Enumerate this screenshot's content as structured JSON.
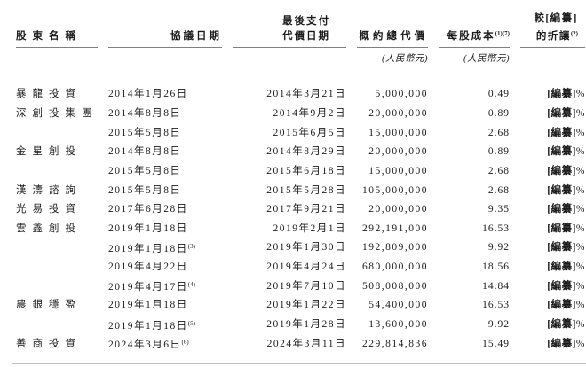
{
  "page": {
    "background": "#ffffff",
    "text_color": "#1b1b1b",
    "header_rule_color": "#808080",
    "bottom_rule_color": "#bfbfbf"
  },
  "table": {
    "columns": {
      "shareholder": {
        "label": "股東名稱"
      },
      "agreement_date": {
        "label": "協議日期"
      },
      "last_payment_date": {
        "label_line1": "最後支付",
        "label_line2": "代價日期"
      },
      "total_consideration": {
        "label": "概約總代價",
        "sublabel": "(人民幣元)"
      },
      "cost_per_share": {
        "label": "每股成本",
        "superscript": "(1)(7)",
        "sublabel": "(人民幣元)"
      },
      "discount": {
        "label_line1": "較[編纂]",
        "label_line2": "的折讓",
        "superscript": "(2)"
      }
    },
    "rows": [
      {
        "shareholder": "暴龍投資",
        "agreement_date": "2014年1月26日",
        "agreement_date_sup": "",
        "last_payment_date": "2014年3月21日",
        "total_consideration": "5,000,000",
        "cost_per_share": "0.49",
        "discount": "[編纂]%"
      },
      {
        "shareholder": "深創投集團",
        "agreement_date": "2014年8月8日",
        "agreement_date_sup": "",
        "last_payment_date": "2014年9月2日",
        "total_consideration": "20,000,000",
        "cost_per_share": "0.89",
        "discount": "[編纂]%"
      },
      {
        "shareholder": "",
        "agreement_date": "2015年5月8日",
        "agreement_date_sup": "",
        "last_payment_date": "2015年6月5日",
        "total_consideration": "15,000,000",
        "cost_per_share": "2.68",
        "discount": "[編纂]%"
      },
      {
        "shareholder": "金星創投",
        "agreement_date": "2014年8月8日",
        "agreement_date_sup": "",
        "last_payment_date": "2014年8月29日",
        "total_consideration": "20,000,000",
        "cost_per_share": "0.89",
        "discount": "[編纂]%"
      },
      {
        "shareholder": "",
        "agreement_date": "2015年5月8日",
        "agreement_date_sup": "",
        "last_payment_date": "2015年6月18日",
        "total_consideration": "15,000,000",
        "cost_per_share": "2.68",
        "discount": "[編纂]%"
      },
      {
        "shareholder": "漢濤諮詢",
        "agreement_date": "2015年5月8日",
        "agreement_date_sup": "",
        "last_payment_date": "2015年5月28日",
        "total_consideration": "105,000,000",
        "cost_per_share": "2.68",
        "discount": "[編纂]%"
      },
      {
        "shareholder": "光易投資",
        "agreement_date": "2017年6月28日",
        "agreement_date_sup": "",
        "last_payment_date": "2017年9月21日",
        "total_consideration": "20,000,000",
        "cost_per_share": "9.35",
        "discount": "[編纂]%"
      },
      {
        "shareholder": "雲鑫創投",
        "agreement_date": "2019年1月18日",
        "agreement_date_sup": "",
        "last_payment_date": "2019年2月1日",
        "total_consideration": "292,191,000",
        "cost_per_share": "16.53",
        "discount": "[編纂]%"
      },
      {
        "shareholder": "",
        "agreement_date": "2019年1月18日",
        "agreement_date_sup": "(3)",
        "last_payment_date": "2019年1月30日",
        "total_consideration": "192,809,000",
        "cost_per_share": "9.92",
        "discount": "[編纂]%"
      },
      {
        "shareholder": "",
        "agreement_date": "2019年4月22日",
        "agreement_date_sup": "",
        "last_payment_date": "2019年4月24日",
        "total_consideration": "680,000,000",
        "cost_per_share": "18.56",
        "discount": "[編纂]%"
      },
      {
        "shareholder": "",
        "agreement_date": "2019年4月17日",
        "agreement_date_sup": "(4)",
        "last_payment_date": "2019年7月10日",
        "total_consideration": "508,008,000",
        "cost_per_share": "14.84",
        "discount": "[編纂]%"
      },
      {
        "shareholder": "農銀穩盈",
        "agreement_date": "2019年1月18日",
        "agreement_date_sup": "",
        "last_payment_date": "2019年1月22日",
        "total_consideration": "54,400,000",
        "cost_per_share": "16.53",
        "discount": "[編纂]%"
      },
      {
        "shareholder": "",
        "agreement_date": "2019年1月18日",
        "agreement_date_sup": "(5)",
        "last_payment_date": "2019年1月28日",
        "total_consideration": "13,600,000",
        "cost_per_share": "9.92",
        "discount": "[編纂]%"
      },
      {
        "shareholder": "善商投資",
        "agreement_date": "2024年3月6日",
        "agreement_date_sup": "(6)",
        "last_payment_date": "2024年3月11日",
        "total_consideration": "229,814,836",
        "cost_per_share": "15.49",
        "discount": "[編纂]%"
      }
    ]
  }
}
